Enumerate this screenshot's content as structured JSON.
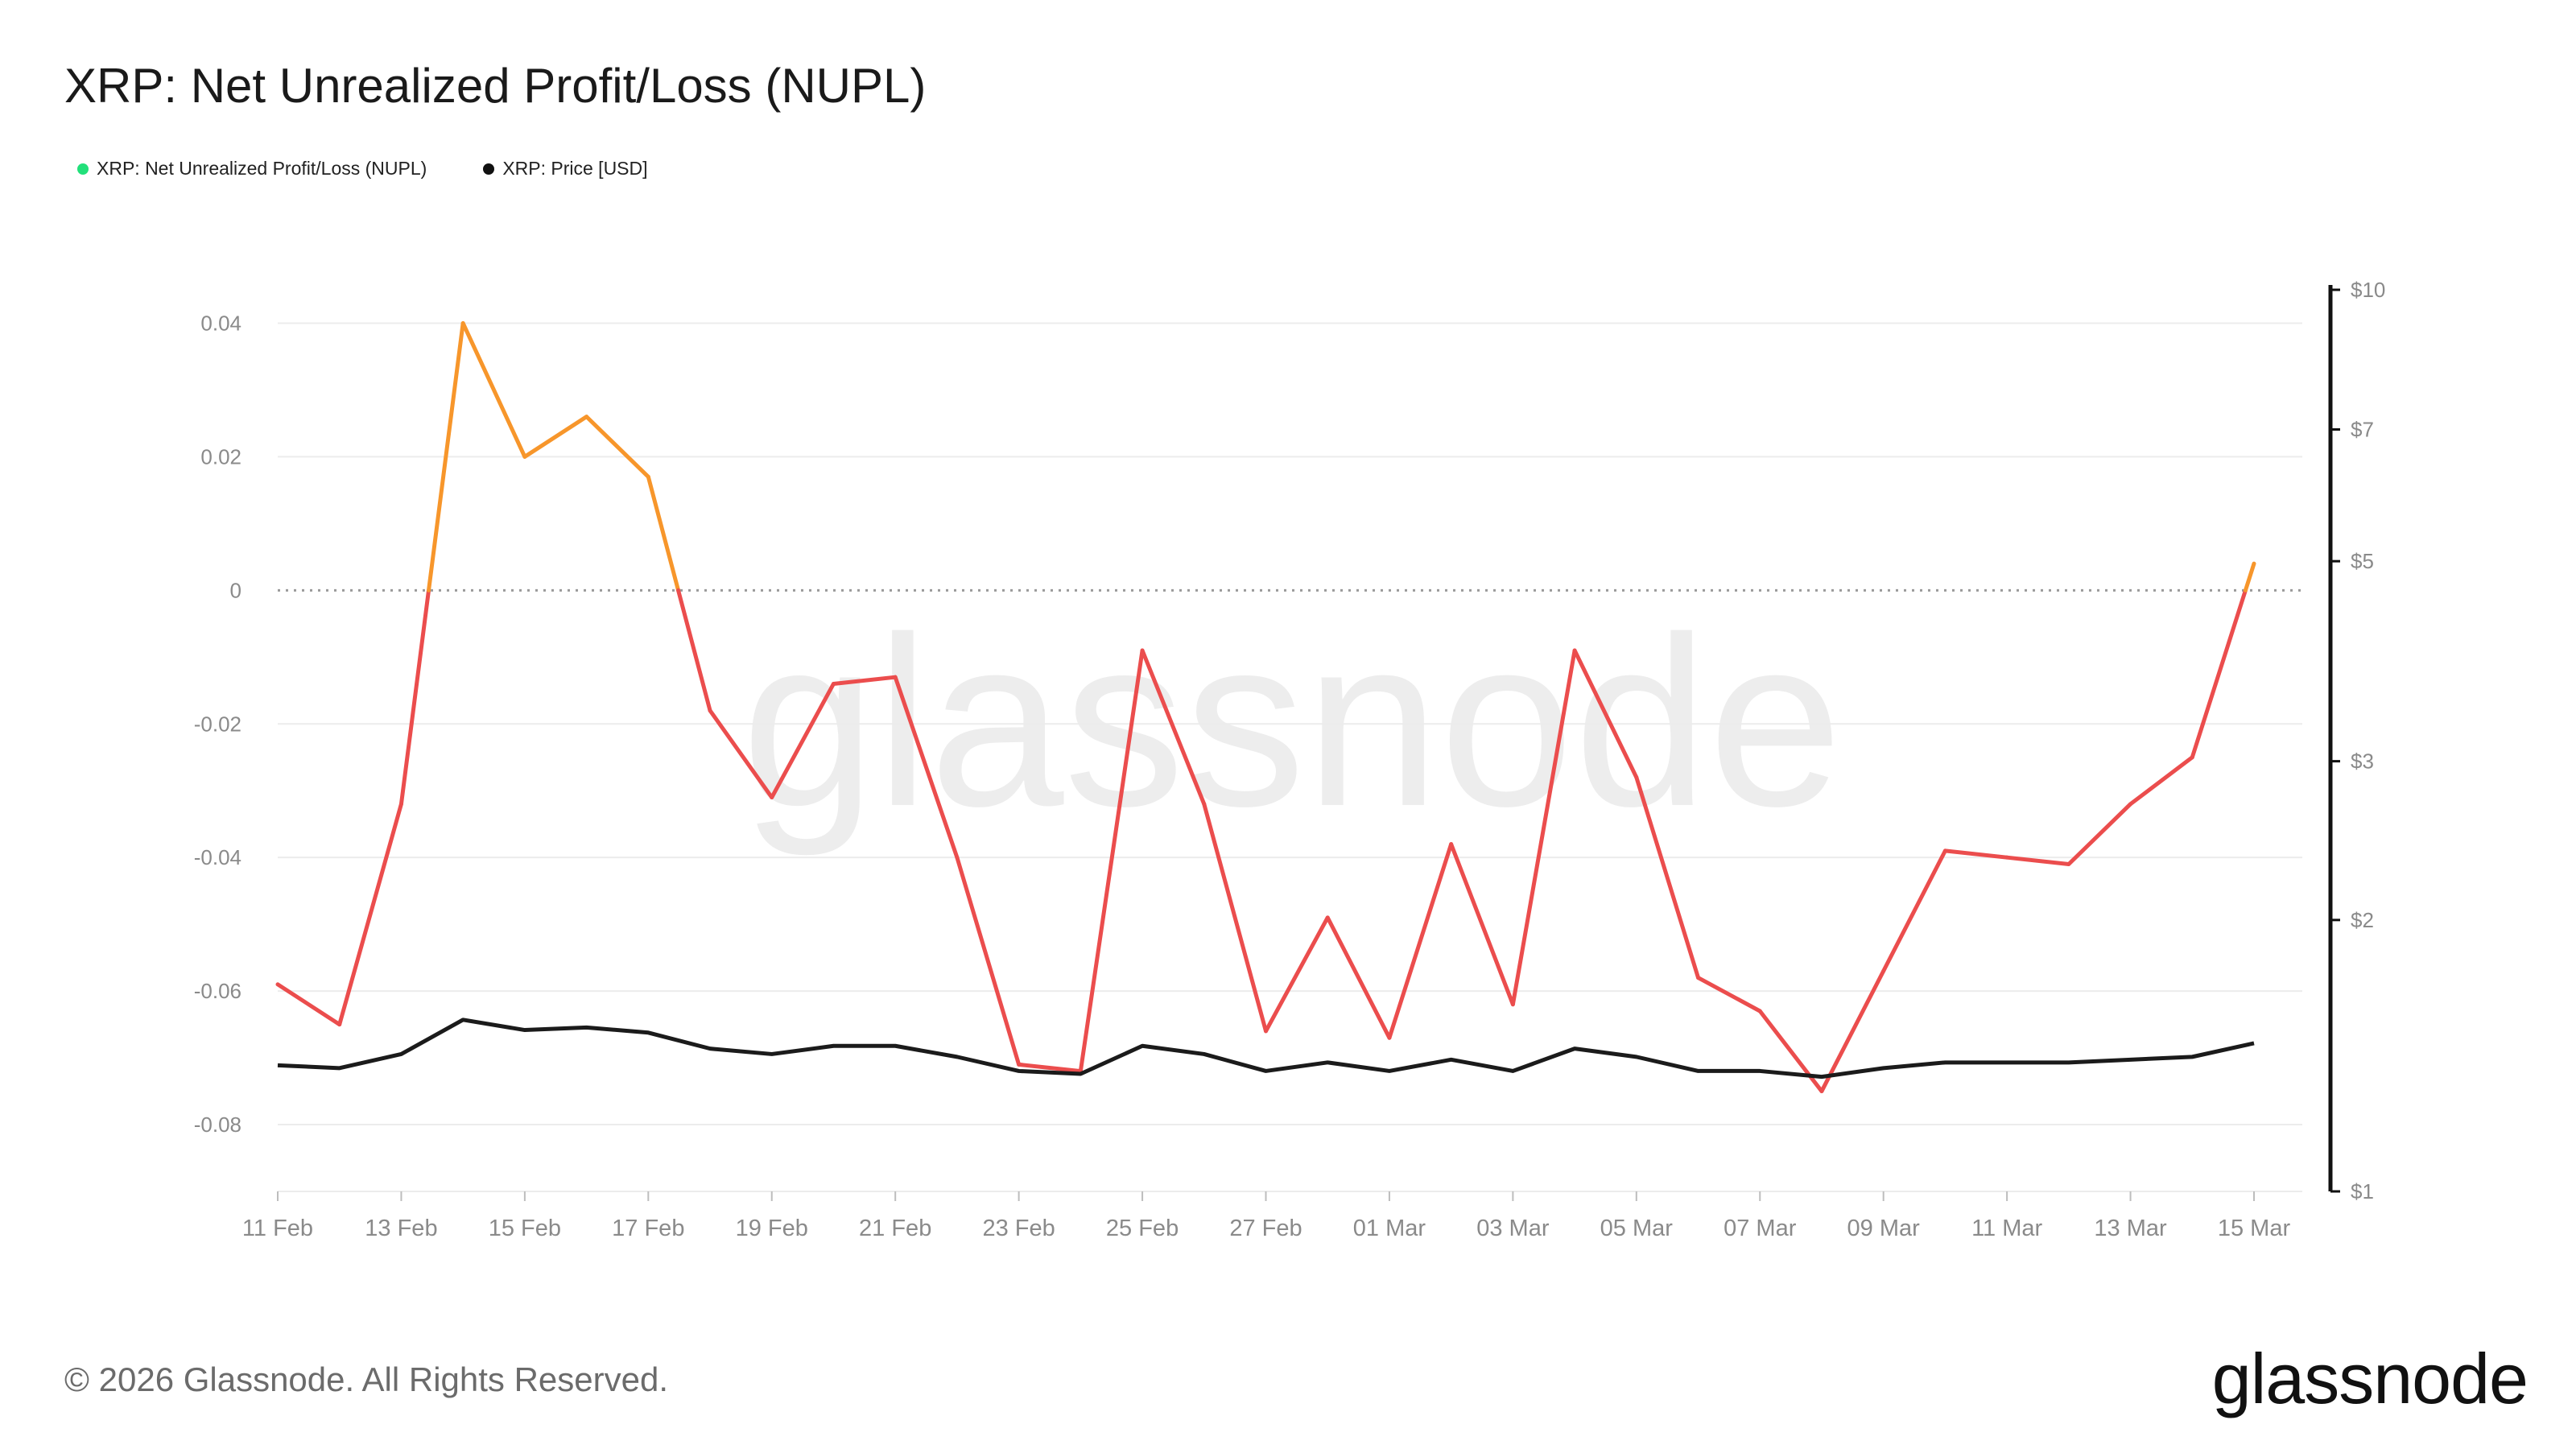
{
  "title": "XRP: Net Unrealized Profit/Loss (NUPL)",
  "legend": [
    {
      "label": "XRP: Net Unrealized Profit/Loss (NUPL)",
      "color": "#22e07a"
    },
    {
      "label": "XRP: Price [USD]",
      "color": "#111111"
    }
  ],
  "footer": {
    "copyright": "© 2026 Glassnode. All Rights Reserved.",
    "logo": "glassnode",
    "watermark": "glassnode"
  },
  "colors": {
    "positive": "#f7962b",
    "negative": "#eb4d4d",
    "price": "#1b1b1b",
    "grid": "#ececec",
    "zero_line": "#9a9a9a",
    "tick_text": "#8a8a8a"
  },
  "chart_data": {
    "type": "line",
    "x": [
      "11 Feb",
      "12 Feb",
      "13 Feb",
      "14 Feb",
      "15 Feb",
      "16 Feb",
      "17 Feb",
      "18 Feb",
      "19 Feb",
      "20 Feb",
      "21 Feb",
      "22 Feb",
      "23 Feb",
      "24 Feb",
      "25 Feb",
      "26 Feb",
      "27 Feb",
      "28 Feb",
      "01 Mar",
      "02 Mar",
      "03 Mar",
      "04 Mar",
      "05 Mar",
      "06 Mar",
      "07 Mar",
      "08 Mar",
      "09 Mar",
      "10 Mar",
      "11 Mar",
      "12 Mar",
      "13 Mar",
      "14 Mar",
      "15 Mar"
    ],
    "x_tick_labels": [
      "11 Feb",
      "13 Feb",
      "15 Feb",
      "17 Feb",
      "19 Feb",
      "21 Feb",
      "23 Feb",
      "25 Feb",
      "27 Feb",
      "01 Mar",
      "03 Mar",
      "05 Mar",
      "07 Mar",
      "09 Mar",
      "11 Mar",
      "13 Mar",
      "15 Mar"
    ],
    "series": [
      {
        "name": "XRP: Net Unrealized Profit/Loss (NUPL)",
        "axis": "left",
        "values": [
          -0.059,
          -0.065,
          -0.032,
          0.04,
          0.02,
          0.026,
          0.017,
          -0.018,
          -0.031,
          -0.014,
          -0.013,
          -0.04,
          -0.071,
          -0.072,
          -0.009,
          -0.032,
          -0.066,
          -0.049,
          -0.067,
          -0.038,
          -0.062,
          -0.009,
          -0.028,
          -0.058,
          -0.063,
          -0.075,
          -0.057,
          -0.039,
          -0.04,
          -0.041,
          -0.032,
          -0.025,
          0.004
        ]
      },
      {
        "name": "XRP: Price [USD]",
        "axis": "right",
        "values": [
          1.38,
          1.37,
          1.42,
          1.55,
          1.51,
          1.52,
          1.5,
          1.44,
          1.42,
          1.45,
          1.45,
          1.41,
          1.36,
          1.35,
          1.45,
          1.42,
          1.36,
          1.39,
          1.36,
          1.4,
          1.36,
          1.44,
          1.41,
          1.36,
          1.36,
          1.34,
          1.37,
          1.39,
          1.39,
          1.39,
          1.4,
          1.41,
          1.46
        ]
      }
    ],
    "y_left": {
      "ticks": [
        0.04,
        0.02,
        0,
        -0.02,
        -0.04,
        -0.06,
        -0.08
      ],
      "tick_labels": [
        "0.04",
        "0.02",
        "0",
        "-0.02",
        "-0.04",
        "-0.06",
        "-0.08"
      ],
      "range": [
        -0.09,
        0.045
      ]
    },
    "y_right": {
      "scale": "log",
      "ticks": [
        10,
        7,
        5,
        3,
        2,
        1
      ],
      "tick_labels": [
        "$10",
        "$7",
        "$5",
        "$3",
        "$2",
        "$1"
      ],
      "range": [
        1,
        10
      ]
    },
    "zero_line": "dotted",
    "grid": true,
    "legend_position": "top-left"
  }
}
